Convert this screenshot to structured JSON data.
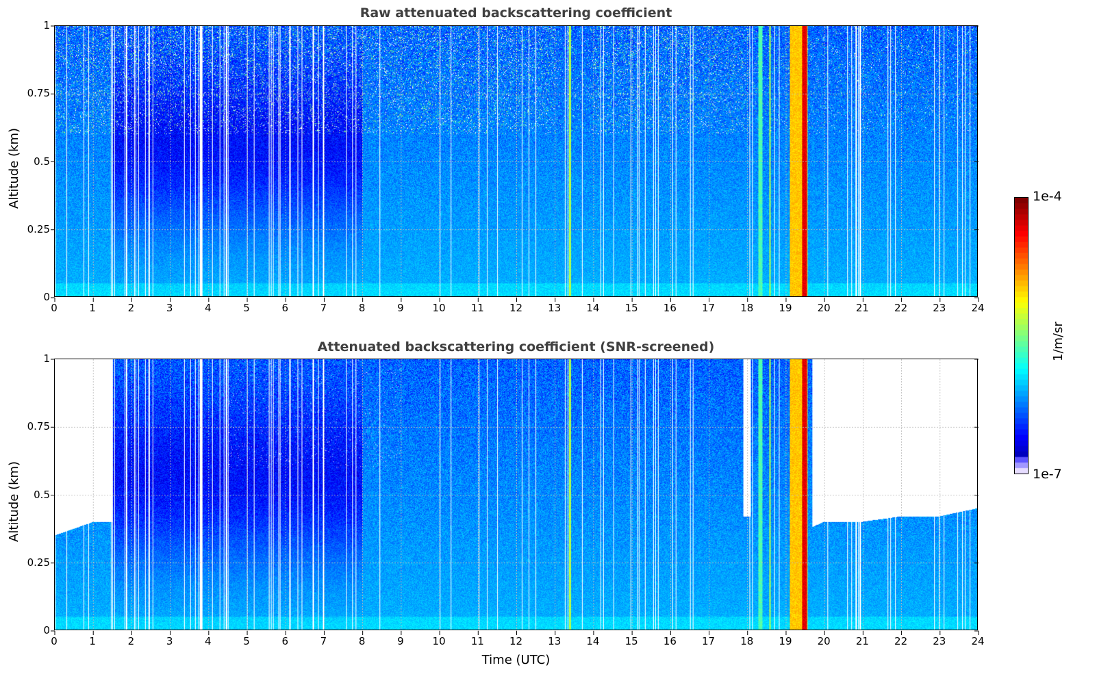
{
  "chart_data": [
    {
      "type": "heatmap",
      "title": "Raw attenuated backscattering coefficient",
      "xlabel": "",
      "ylabel": "Altitude (km)",
      "xlim": [
        0,
        24
      ],
      "ylim": [
        0,
        1
      ],
      "xticks": [
        "0",
        "1",
        "2",
        "3",
        "4",
        "5",
        "6",
        "7",
        "8",
        "9",
        "10",
        "11",
        "12",
        "13",
        "14",
        "15",
        "16",
        "17",
        "18",
        "19",
        "20",
        "21",
        "22",
        "23",
        "24"
      ],
      "yticks": [
        "0",
        "0.25",
        "0.5",
        "0.75",
        "1"
      ],
      "grid": true,
      "screened": false,
      "features": [
        {
          "time": 13.4,
          "level": "green",
          "width_h": 0.05
        },
        {
          "time": 18.35,
          "level": "cyan-green",
          "width_h": 0.12
        },
        {
          "time": 18.6,
          "level": "green",
          "width_h": 0.05
        },
        {
          "time": 19.35,
          "level": "yellow",
          "width_h": 0.45
        },
        {
          "time": 19.5,
          "level": "red",
          "width_h": 0.12
        }
      ]
    },
    {
      "type": "heatmap",
      "title": "Attenuated backscattering coefficient (SNR-screened)",
      "xlabel": "Time (UTC)",
      "ylabel": "Altitude (km)",
      "xlim": [
        0,
        24
      ],
      "ylim": [
        0,
        1
      ],
      "xticks": [
        "0",
        "1",
        "2",
        "3",
        "4",
        "5",
        "6",
        "7",
        "8",
        "9",
        "10",
        "11",
        "12",
        "13",
        "14",
        "15",
        "16",
        "17",
        "18",
        "19",
        "20",
        "21",
        "22",
        "23",
        "24"
      ],
      "yticks": [
        "0",
        "0.25",
        "0.5",
        "0.75",
        "1"
      ],
      "grid": true,
      "screened": true,
      "screen_top_km": [
        [
          0,
          0.35
        ],
        [
          1,
          0.4
        ],
        [
          1.5,
          1
        ],
        [
          17.8,
          1
        ],
        [
          17.9,
          0.42
        ],
        [
          18.1,
          1
        ],
        [
          19.7,
          0.38
        ],
        [
          20,
          0.4
        ],
        [
          21,
          0.4
        ],
        [
          22,
          0.42
        ],
        [
          23,
          0.42
        ],
        [
          24,
          0.45
        ]
      ],
      "features": [
        {
          "time": 13.4,
          "level": "green",
          "width_h": 0.05
        },
        {
          "time": 18.35,
          "level": "cyan-green",
          "width_h": 0.12
        },
        {
          "time": 18.6,
          "level": "green",
          "width_h": 0.05
        },
        {
          "time": 19.35,
          "level": "yellow",
          "width_h": 0.45
        },
        {
          "time": 19.5,
          "level": "red",
          "width_h": 0.12
        }
      ]
    }
  ],
  "colorbar": {
    "max_label": "1e-4",
    "min_label": "1e-7",
    "unit": "1/m/sr",
    "range_log10": [
      -7,
      -4
    ],
    "colormap": "jet"
  }
}
